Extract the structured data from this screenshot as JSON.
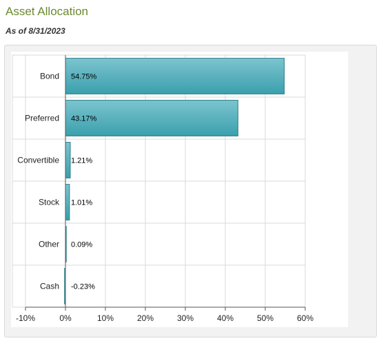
{
  "header": {
    "title": "Asset Allocation",
    "as_of": "As of 8/31/2023"
  },
  "colors": {
    "bar_fill_top": "#7cc4cf",
    "bar_fill_bottom": "#3aa0ad",
    "bar_stroke": "#2b7f8a",
    "grid": "#d8d8d8",
    "title": "#6b8a2f"
  },
  "chart_data": {
    "type": "bar",
    "orientation": "horizontal",
    "categories": [
      "Bond",
      "Preferred",
      "Convertible",
      "Stock",
      "Other",
      "Cash"
    ],
    "values": [
      54.75,
      43.17,
      1.21,
      1.01,
      0.09,
      -0.23
    ],
    "data_labels": [
      "54.75%",
      "43.17%",
      "1.21%",
      "1.01%",
      "0.09%",
      "-0.23%"
    ],
    "xlim": [
      -10,
      60
    ],
    "x_ticks": [
      -10,
      0,
      10,
      20,
      30,
      40,
      50,
      60
    ],
    "x_tick_labels": [
      "-10%",
      "0%",
      "10%",
      "20%",
      "30%",
      "40%",
      "50%",
      "60%"
    ],
    "grid": true,
    "legend": "none",
    "xlabel": "",
    "ylabel": ""
  }
}
